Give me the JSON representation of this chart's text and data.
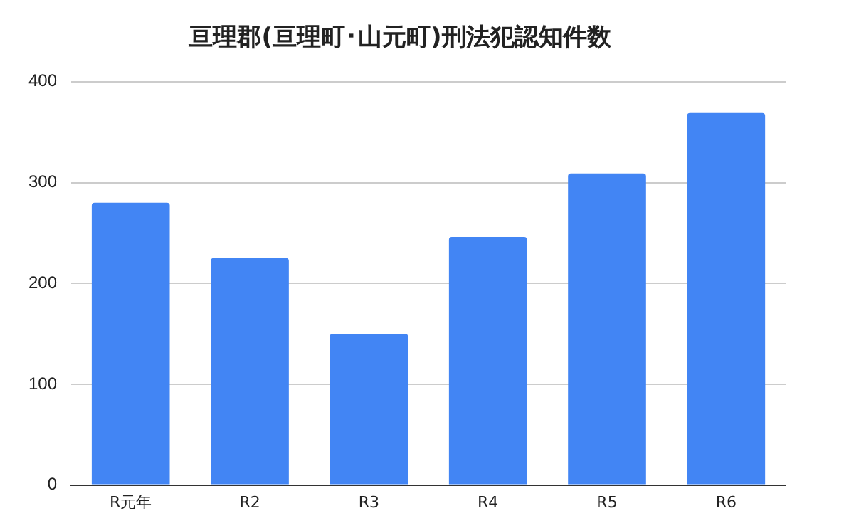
{
  "chart_data": {
    "type": "bar",
    "title": "亘理郡(亘理町･山元町)刑法犯認知件数",
    "categories": [
      "R元年",
      "R2",
      "R3",
      "R4",
      "R5",
      "R6"
    ],
    "values": [
      280,
      225,
      150,
      246,
      309,
      369
    ],
    "color": "#4285f4",
    "ylim": [
      0,
      400
    ],
    "yticks": [
      0,
      100,
      200,
      300,
      400
    ],
    "grid": "y"
  }
}
